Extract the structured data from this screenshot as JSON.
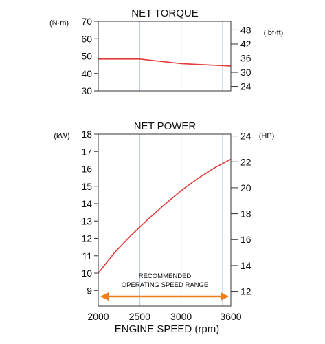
{
  "colors": {
    "curve": "#e23b3b",
    "arrow": "#ef7d1a",
    "grid": "#a9c6e8",
    "axis": "#333333"
  },
  "chart_data": [
    {
      "type": "line",
      "title": "NET TORQUE",
      "left_unit": "(N·m)",
      "right_unit": "(lbf·ft)",
      "x": [
        2000,
        2500,
        3000,
        3600
      ],
      "y": [
        48.3,
        48.3,
        45.7,
        44.3
      ],
      "xlim": [
        2000,
        3600
      ],
      "ylim": [
        30,
        70
      ],
      "left_ticks": [
        70,
        60,
        50,
        40,
        30
      ],
      "right_ticks": [
        48,
        42,
        36,
        30,
        24
      ],
      "right_scale_per_left": 0.7376,
      "x_grid": [
        2500,
        3000,
        3500
      ],
      "grid": true
    },
    {
      "type": "line",
      "title": "NET POWER",
      "left_unit": "(kW)",
      "right_unit": "(HP)",
      "x": [
        2000,
        2200,
        2400,
        2600,
        2800,
        3000,
        3200,
        3400,
        3600
      ],
      "y": [
        10.0,
        11.2,
        12.2,
        13.1,
        13.95,
        14.75,
        15.45,
        16.05,
        16.55
      ],
      "xlim": [
        2000,
        3600
      ],
      "ylim": [
        8.1,
        18
      ],
      "left_ticks": [
        18,
        17,
        16,
        15,
        14,
        13,
        12,
        11,
        10,
        9
      ],
      "right_ticks": [
        24,
        22,
        20,
        18,
        16,
        14,
        12
      ],
      "right_scale_per_left": 1.341,
      "x_grid": [
        2500,
        3000,
        3500
      ],
      "x_ticks": [
        2000,
        2500,
        3000,
        3600
      ],
      "xlabel": "ENGINE SPEED (rpm)",
      "annotation_line1": "RECOMMENDED",
      "annotation_line2": "OPERATING SPEED RANGE",
      "range": [
        2000,
        3600
      ],
      "grid": true
    }
  ]
}
